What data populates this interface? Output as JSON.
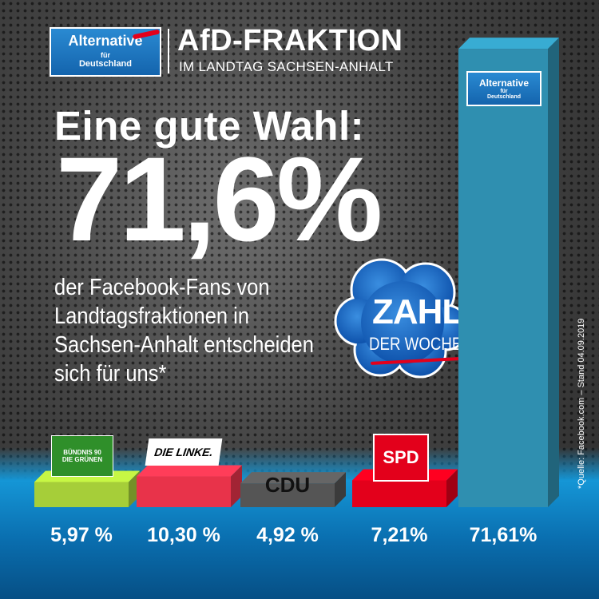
{
  "header": {
    "logo": {
      "line1": "Alternative",
      "line2": "für",
      "line3": "Deutschland"
    },
    "title": "AfD-FRAKTION",
    "subtitle": "IM LANDTAG SACHSEN-ANHALT"
  },
  "headline": "Eine gute Wahl:",
  "big_number": "71,6%",
  "subtext_lines": [
    "der Facebook-Fans von",
    "Landtagsfraktionen in",
    "Sachsen-Anhalt entscheiden",
    "sich für uns*"
  ],
  "badge": {
    "title": "ZAHL",
    "subtitle": "DER WOCHE"
  },
  "source_note": "*Quelle: Facebook.com – Stand 04.09.2019",
  "chart_data": {
    "type": "bar",
    "categories": [
      "BÜNDNIS 90 DIE GRÜNEN",
      "DIE LINKE.",
      "CDU",
      "SPD",
      "Alternative für Deutschland"
    ],
    "values": [
      5.97,
      10.3,
      4.92,
      7.21,
      71.61
    ],
    "value_labels": [
      "5,97 %",
      "10,30 %",
      "4,92 %",
      "7,21%",
      "71,61%"
    ],
    "colors": [
      "#a6ce39",
      "#e8334a",
      "#555555",
      "#e3001b",
      "#2f8fb0"
    ],
    "logo_texts": [
      [
        "BÜNDNIS 90",
        "DIE GRÜNEN"
      ],
      [
        "DIE LINKE."
      ],
      [
        "CDU"
      ],
      [
        "SPD"
      ],
      [
        "Alternative",
        "für",
        "Deutschland"
      ]
    ],
    "ylim": [
      0,
      72
    ],
    "legend": "none",
    "grid": false
  }
}
